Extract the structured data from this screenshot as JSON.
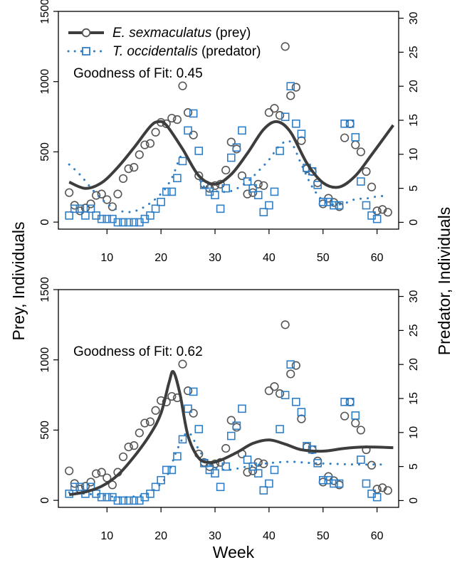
{
  "chart_data": [
    {
      "type": "scatter",
      "panel": "top",
      "annotation": "Goodness of Fit: 0.45",
      "legend": {
        "placement": "top-left",
        "entries": [
          {
            "italic": "E. sexmaculatus",
            "plain": " (prey)"
          },
          {
            "italic": "T. occidentalis",
            "plain": " (predator)"
          }
        ]
      },
      "xlim": [
        1,
        64
      ],
      "ylim_left": [
        -50,
        1500
      ],
      "ylim_right": [
        -1,
        31
      ],
      "x_ticks": [
        10,
        20,
        30,
        40,
        50,
        60
      ],
      "left_ticks": [
        0,
        500,
        1000,
        1500
      ],
      "right_ticks": [
        0,
        5,
        10,
        15,
        20,
        25,
        30
      ],
      "prey_fit": [
        [
          3,
          285
        ],
        [
          6,
          240
        ],
        [
          9,
          280
        ],
        [
          12,
          390
        ],
        [
          15,
          530
        ],
        [
          18,
          680
        ],
        [
          19.5,
          715
        ],
        [
          21,
          690
        ],
        [
          24,
          520
        ],
        [
          27,
          330
        ],
        [
          30,
          270
        ],
        [
          33,
          340
        ],
        [
          36,
          490
        ],
        [
          39,
          660
        ],
        [
          41.5,
          715
        ],
        [
          44,
          640
        ],
        [
          47,
          420
        ],
        [
          50,
          280
        ],
        [
          53,
          250
        ],
        [
          56,
          330
        ],
        [
          59,
          480
        ],
        [
          63,
          690
        ]
      ],
      "predator_fit": [
        [
          3,
          8.5
        ],
        [
          5,
          7
        ],
        [
          8,
          4.2
        ],
        [
          11,
          2.2
        ],
        [
          14,
          1.5
        ],
        [
          17,
          2.3
        ],
        [
          20,
          4.2
        ],
        [
          22,
          6.5
        ],
        [
          24,
          10
        ],
        [
          26,
          8
        ],
        [
          28,
          5.2
        ],
        [
          30,
          4.6
        ],
        [
          33,
          4.6
        ],
        [
          36,
          6
        ],
        [
          38,
          7.5
        ],
        [
          40,
          9.2
        ],
        [
          42,
          11.3
        ],
        [
          44,
          11.8
        ],
        [
          46,
          8.5
        ],
        [
          48,
          5.2
        ],
        [
          50,
          3.2
        ],
        [
          52,
          2.6
        ],
        [
          54,
          2.8
        ],
        [
          56,
          3.4
        ],
        [
          58,
          3.5
        ],
        [
          60,
          3.8
        ],
        [
          62,
          3.9
        ]
      ]
    },
    {
      "type": "scatter",
      "panel": "bottom",
      "annotation": "Goodness of Fit: 0.62",
      "xlim": [
        1,
        64
      ],
      "ylim_left": [
        -50,
        1500
      ],
      "ylim_right": [
        -1,
        31
      ],
      "x_ticks": [
        10,
        20,
        30,
        40,
        50,
        60
      ],
      "left_ticks": [
        0,
        500,
        1000,
        1500
      ],
      "right_ticks": [
        0,
        5,
        10,
        15,
        20,
        25,
        30
      ],
      "prey_fit": [
        [
          3,
          40
        ],
        [
          6,
          60
        ],
        [
          9,
          100
        ],
        [
          12,
          180
        ],
        [
          15,
          310
        ],
        [
          18,
          470
        ],
        [
          20,
          620
        ],
        [
          21.5,
          840
        ],
        [
          22.3,
          915
        ],
        [
          23.5,
          760
        ],
        [
          25,
          460
        ],
        [
          27,
          300
        ],
        [
          29,
          270
        ],
        [
          31,
          285
        ],
        [
          34,
          340
        ],
        [
          37,
          405
        ],
        [
          40,
          430
        ],
        [
          43,
          400
        ],
        [
          46,
          360
        ],
        [
          50,
          350
        ],
        [
          54,
          370
        ],
        [
          58,
          380
        ],
        [
          63,
          375
        ]
      ],
      "predator_fit": [
        [
          3,
          1.2
        ],
        [
          6,
          1
        ],
        [
          9,
          0.8
        ],
        [
          12,
          0.5
        ],
        [
          15,
          0.6
        ],
        [
          18,
          1.2
        ],
        [
          21,
          3.5
        ],
        [
          23,
          7.5
        ],
        [
          25,
          10
        ],
        [
          27,
          7.5
        ],
        [
          29,
          5.3
        ],
        [
          32,
          4.5
        ],
        [
          36,
          5
        ],
        [
          40,
          5.5
        ],
        [
          44,
          5.7
        ],
        [
          48,
          5.5
        ],
        [
          52,
          5.4
        ],
        [
          56,
          5.3
        ],
        [
          60,
          5.3
        ],
        [
          62,
          5.3
        ]
      ]
    }
  ],
  "observations": {
    "prey": [
      [
        3,
        210
      ],
      [
        4,
        120
      ],
      [
        5,
        80
      ],
      [
        6,
        100
      ],
      [
        7,
        130
      ],
      [
        8,
        190
      ],
      [
        9,
        200
      ],
      [
        10,
        160
      ],
      [
        11,
        110
      ],
      [
        12,
        200
      ],
      [
        13,
        310
      ],
      [
        14,
        380
      ],
      [
        15,
        390
      ],
      [
        16,
        480
      ],
      [
        17,
        550
      ],
      [
        18,
        560
      ],
      [
        19,
        640
      ],
      [
        20,
        710
      ],
      [
        21,
        700
      ],
      [
        22,
        740
      ],
      [
        23,
        730
      ],
      [
        24,
        970
      ],
      [
        25,
        780
      ],
      [
        26,
        620
      ],
      [
        27,
        330
      ],
      [
        28,
        270
      ],
      [
        29,
        240
      ],
      [
        30,
        260
      ],
      [
        31,
        270
      ],
      [
        32,
        370
      ],
      [
        33,
        570
      ],
      [
        34,
        520
      ],
      [
        35,
        330
      ],
      [
        36,
        200
      ],
      [
        37,
        210
      ],
      [
        38,
        270
      ],
      [
        39,
        260
      ],
      [
        40,
        780
      ],
      [
        41,
        810
      ],
      [
        42,
        760
      ],
      [
        43,
        1250
      ],
      [
        44,
        900
      ],
      [
        45,
        960
      ],
      [
        46,
        580
      ],
      [
        47,
        380
      ],
      [
        48,
        360
      ],
      [
        49,
        280
      ],
      [
        50,
        130
      ],
      [
        51,
        170
      ],
      [
        52,
        140
      ],
      [
        53,
        110
      ],
      [
        54,
        600
      ],
      [
        55,
        700
      ],
      [
        56,
        550
      ],
      [
        57,
        500
      ],
      [
        58,
        360
      ],
      [
        59,
        250
      ],
      [
        60,
        80
      ],
      [
        61,
        90
      ],
      [
        62,
        70
      ]
    ],
    "predator": [
      [
        3,
        1
      ],
      [
        4,
        2
      ],
      [
        5,
        2
      ],
      [
        6,
        1
      ],
      [
        7,
        2
      ],
      [
        8,
        1
      ],
      [
        9,
        0.5
      ],
      [
        10,
        0.5
      ],
      [
        11,
        0.5
      ],
      [
        12,
        0
      ],
      [
        13,
        0
      ],
      [
        14,
        0
      ],
      [
        15,
        0
      ],
      [
        16,
        0
      ],
      [
        17,
        0.5
      ],
      [
        18,
        1
      ],
      [
        19,
        2
      ],
      [
        20,
        3
      ],
      [
        21,
        4.5
      ],
      [
        22,
        4.5
      ],
      [
        23,
        6.5
      ],
      [
        24,
        9
      ],
      [
        25,
        13.5
      ],
      [
        26,
        16
      ],
      [
        27,
        10.5
      ],
      [
        28,
        5.5
      ],
      [
        29,
        4.5
      ],
      [
        30,
        4
      ],
      [
        31,
        2
      ],
      [
        32,
        5
      ],
      [
        33,
        9.5
      ],
      [
        34,
        11
      ],
      [
        35,
        13.5
      ],
      [
        36,
        6
      ],
      [
        37,
        5
      ],
      [
        38,
        4
      ],
      [
        39,
        1.5
      ],
      [
        40,
        2.5
      ],
      [
        41,
        4.5
      ],
      [
        42,
        10.5
      ],
      [
        43,
        15.5
      ],
      [
        44,
        20
      ],
      [
        45,
        14.5
      ],
      [
        46,
        13
      ],
      [
        47,
        8
      ],
      [
        48,
        7.5
      ],
      [
        49,
        5.5
      ],
      [
        50,
        3
      ],
      [
        51,
        3
      ],
      [
        52,
        2.5
      ],
      [
        53,
        2.5
      ],
      [
        54,
        14.5
      ],
      [
        55,
        14.5
      ],
      [
        56,
        12.5
      ],
      [
        57,
        6
      ],
      [
        58,
        2.5
      ],
      [
        59,
        1
      ],
      [
        60,
        0.5
      ]
    ]
  },
  "labels": {
    "xlabel": "Week",
    "ylabel_left": "Prey, Individuals",
    "ylabel_right": "Predator, Individuals"
  },
  "colors": {
    "prey": "#3d3d3d",
    "predator": "#2f7ec6"
  }
}
